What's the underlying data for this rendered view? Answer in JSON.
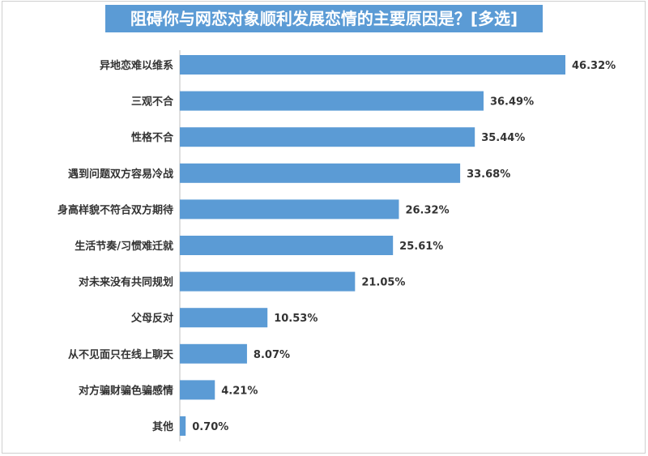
{
  "chart_data": {
    "type": "bar",
    "orientation": "horizontal",
    "title": "阻碍你与网恋对象顺利发展恋情的主要原因是？[多选]",
    "categories": [
      "异地恋难以维系",
      "三观不合",
      "性格不合",
      "遇到问题双方容易冷战",
      "身高样貌不符合双方期待",
      "生活节奏/习惯难迁就",
      "对未来没有共同规划",
      "父母反对",
      "从不见面只在线上聊天",
      "对方骗财骗色骗感情",
      "其他"
    ],
    "values": [
      46.32,
      36.49,
      35.44,
      33.68,
      26.32,
      25.61,
      21.05,
      10.53,
      8.07,
      4.21,
      0.7
    ],
    "value_labels": [
      "46.32%",
      "36.49%",
      "35.44%",
      "33.68%",
      "26.32%",
      "25.61%",
      "21.05%",
      "10.53%",
      "8.07%",
      "4.21%",
      "0.70%"
    ],
    "unit": "%",
    "xlim": [
      0,
      46.32
    ],
    "grid": false,
    "bar_color": "#5b9bd5",
    "title_bg_color": "#5b9bd5",
    "title_text_color": "#ffffff"
  }
}
